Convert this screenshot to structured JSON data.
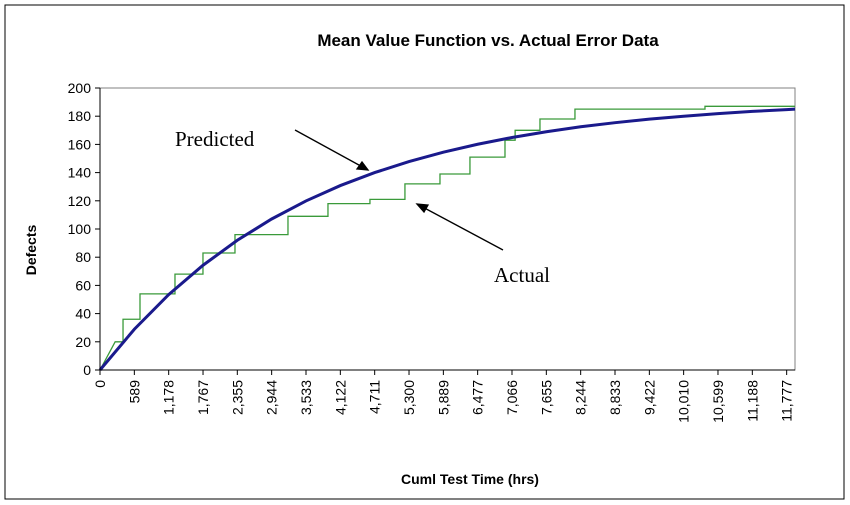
{
  "chart_data": {
    "type": "line",
    "title": "Mean Value Function vs. Actual  Error Data",
    "x_label": "Cuml Test Time (hrs)",
    "y_label": "Defects",
    "annotations": [
      "Predicted",
      "Actual"
    ],
    "xlim": [
      0,
      11920
    ],
    "ylim": [
      0,
      200
    ],
    "yticks": [
      0,
      20,
      40,
      60,
      80,
      100,
      120,
      140,
      160,
      180,
      200
    ],
    "xticks": [
      0,
      589,
      {
        "value": 1178,
        "label": "1,178"
      },
      {
        "value": 1767,
        "label": "1,767"
      },
      {
        "value": 2355,
        "label": "2,355"
      },
      {
        "value": 2944,
        "label": "2,944"
      },
      {
        "value": 3533,
        "label": "3,533"
      },
      {
        "value": 4122,
        "label": "4,122"
      },
      {
        "value": 4711,
        "label": "4,711"
      },
      {
        "value": 5300,
        "label": "5,300"
      },
      {
        "value": 5889,
        "label": "5,889"
      },
      {
        "value": 6477,
        "label": "6,477"
      },
      {
        "value": 7066,
        "label": "7,066"
      },
      {
        "value": 7655,
        "label": "7,655"
      },
      {
        "value": 8244,
        "label": "8,244"
      },
      {
        "value": 8833,
        "label": "8,833"
      },
      {
        "value": 9422,
        "label": "9,422"
      },
      {
        "value": 10010,
        "label": "10,010"
      },
      {
        "value": 10599,
        "label": "10,599"
      },
      {
        "value": 11188,
        "label": "11,188"
      },
      {
        "value": 11777,
        "label": "11,777"
      }
    ],
    "series": [
      {
        "name": "Predicted",
        "color": "#1a1a8c",
        "x": [
          0,
          589,
          1178,
          1767,
          2355,
          2944,
          3533,
          4122,
          4711,
          5300,
          5889,
          6477,
          7066,
          7655,
          8244,
          8833,
          9422,
          10010,
          10599,
          11188,
          11777,
          11920
        ],
        "values": [
          0,
          28.9,
          53.5,
          74.3,
          92,
          107.1,
          119.9,
          130.8,
          140,
          147.8,
          154.5,
          160.1,
          164.9,
          169,
          172.5,
          175.4,
          177.9,
          180,
          181.8,
          183.4,
          184.7,
          185
        ]
      },
      {
        "name": "Actual",
        "color": "#3a9a3a",
        "x": [
          0,
          260,
          395,
          395,
          686,
          686,
          1286,
          1286,
          1766,
          1766,
          2315,
          2315,
          3224,
          3224,
          3910,
          3910,
          4630,
          4630,
          5230,
          5230,
          5831,
          5831,
          6345,
          6345,
          6946,
          6946,
          7120,
          7120,
          7546,
          7546,
          8146,
          8146,
          10376,
          10376,
          11920
        ],
        "values": [
          0,
          20,
          20,
          36,
          36,
          54,
          54,
          68,
          68,
          83,
          83,
          96,
          96,
          109,
          109,
          118,
          118,
          121,
          121,
          132,
          132,
          139,
          139,
          151,
          151,
          163,
          163,
          170,
          170,
          178,
          178,
          185,
          185,
          187,
          187
        ]
      }
    ]
  }
}
